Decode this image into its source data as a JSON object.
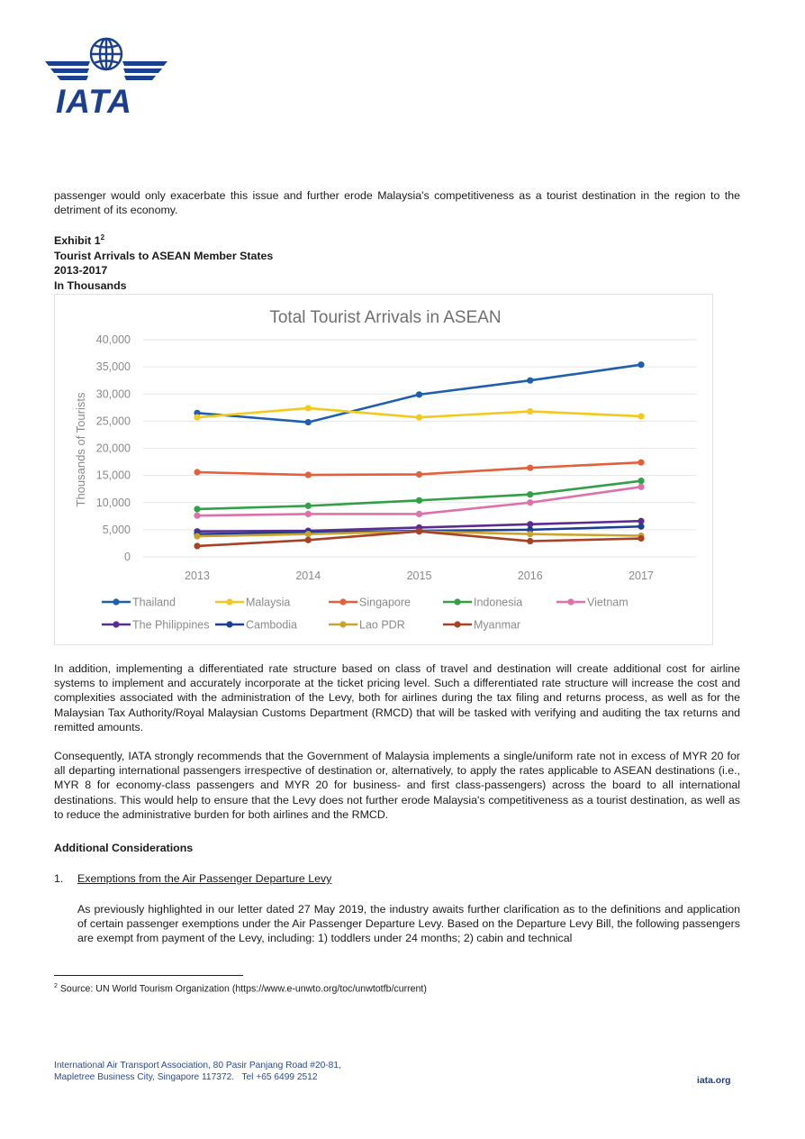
{
  "logo": {
    "text": "IATA"
  },
  "intro_paragraph": "passenger would only exacerbate this issue and further erode Malaysia's competitiveness as a tourist destination in the region to the detriment of its economy.",
  "exhibit": {
    "label": "Exhibit 1",
    "footnote_ref": "2",
    "title": "Tourist Arrivals to ASEAN Member States",
    "years": "2013-2017",
    "units": "In Thousands"
  },
  "chart_data": {
    "type": "line",
    "title": "Total Tourist Arrivals in ASEAN",
    "ylabel": "Thousands of Tourists",
    "xlabel": "",
    "x": [
      "2013",
      "2014",
      "2015",
      "2016",
      "2017"
    ],
    "y_ticks": [
      "0",
      "5,000",
      "10,000",
      "15,000",
      "20,000",
      "25,000",
      "30,000",
      "35,000",
      "40,000"
    ],
    "ylim": [
      0,
      40000
    ],
    "grid": true,
    "legend_position": "bottom",
    "series": [
      {
        "name": "Thailand",
        "color": "#1f5fad",
        "values": [
          26500,
          24800,
          29900,
          32500,
          35400
        ]
      },
      {
        "name": "Malaysia",
        "color": "#f2c91f",
        "values": [
          25700,
          27400,
          25700,
          26800,
          25900
        ]
      },
      {
        "name": "Singapore",
        "color": "#e3603a",
        "values": [
          15600,
          15100,
          15200,
          16400,
          17400
        ]
      },
      {
        "name": "Indonesia",
        "color": "#32a046",
        "values": [
          8800,
          9400,
          10400,
          11500,
          14000
        ]
      },
      {
        "name": "Vietnam",
        "color": "#e070aa",
        "values": [
          7600,
          7900,
          7900,
          10000,
          12900
        ]
      },
      {
        "name": "The Philippines",
        "color": "#5b2d91",
        "values": [
          4700,
          4800,
          5400,
          6000,
          6600
        ]
      },
      {
        "name": "Cambodia",
        "color": "#1c3f94",
        "values": [
          4200,
          4500,
          4800,
          5000,
          5600
        ]
      },
      {
        "name": "Lao PDR",
        "color": "#c9a42c",
        "values": [
          3800,
          4200,
          4700,
          4200,
          3900
        ]
      },
      {
        "name": "Myanmar",
        "color": "#a84226",
        "values": [
          2000,
          3100,
          4700,
          2900,
          3400
        ]
      }
    ]
  },
  "paragraphs": {
    "p1": "In addition, implementing a differentiated rate structure based on class of travel and destination will create additional cost for airline systems to implement and accurately incorporate at the ticket pricing level. Such a differentiated rate structure will increase the cost and complexities associated with the administration of the Levy, both for airlines during the tax filing and returns process, as well as for the Malaysian Tax Authority/Royal Malaysian Customs Department (RMCD) that will be tasked with verifying and auditing the tax returns and remitted amounts.",
    "p2": "Consequently, IATA strongly recommends that the Government of Malaysia implements a single/uniform rate not in excess of MYR 20 for all departing international passengers irrespective of destination or, alternatively, to apply the rates applicable to ASEAN destinations (i.e., MYR 8 for economy-class passengers and MYR 20 for business- and first class-passengers) across the board to all international destinations. This would help to ensure that the Levy does not further erode Malaysia's competitiveness as a tourist destination, as well as to reduce the administrative burden for both airlines and the RMCD.",
    "p3": "As previously highlighted in our letter dated 27 May 2019, the industry awaits further clarification as to the definitions and application of certain passenger exemptions under the Air Passenger Departure Levy. Based on the Departure Levy Bill, the following passengers are exempt from payment of the Levy, including: 1) toddlers under 24 months; 2) cabin and technical"
  },
  "section": {
    "heading": "Additional Considerations",
    "item_number": "1.",
    "item_title": "Exemptions from the Air Passenger Departure Levy"
  },
  "footnote": {
    "number": "2",
    "text": "Source: UN World Tourism Organization (https://www.e-unwto.org/toc/unwtotfb/current)"
  },
  "footer": {
    "address_line1": "International Air Transport Association, 80 Pasir Panjang Road #20-81,",
    "address_line2": "Mapletree Business City, Singapore 117372.   Tel +65 6499 2512",
    "url": "iata.org"
  },
  "colors": {
    "brand": "#1b3f8f",
    "grid": "#e6e6e6",
    "axis_text": "#8a8a8a"
  },
  "icons": {
    "logo": "globe-wings-icon"
  }
}
